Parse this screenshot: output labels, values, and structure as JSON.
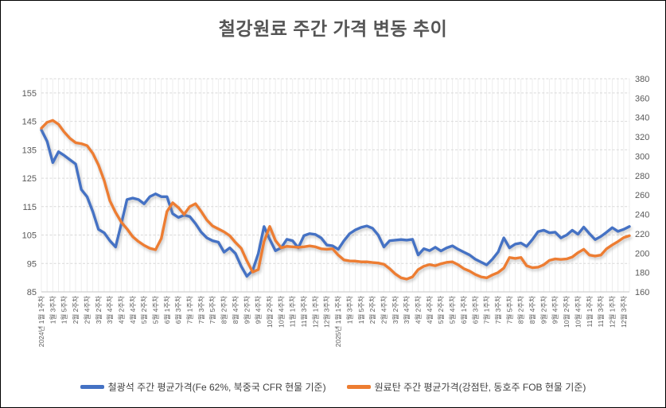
{
  "title": {
    "text": "철강원료 주간 가격 변동 추이",
    "color": "#555555"
  },
  "legend": {
    "items": [
      {
        "label": "철광석 주간 평균가격(Fe 62%, 북중국 CFR 현물 기준)",
        "color": "#4472C4"
      },
      {
        "label": "원료탄 주간 평균가격(강점탄, 동호주 FOB 현물 기준)",
        "color": "#ED7D31"
      }
    ]
  },
  "chart_data": {
    "type": "line",
    "title": "철강원료 주간 가격 변동 추이",
    "grid": {
      "h_color": "#D9D9D9",
      "v_color": "#EDEDED",
      "axis_color": "#C6C6C6",
      "label_color": "#595959"
    },
    "left_axis": {
      "min": 85,
      "max": 160,
      "ticks": [
        85,
        95,
        105,
        115,
        125,
        135,
        145,
        155
      ]
    },
    "right_axis": {
      "min": 160,
      "max": 380,
      "ticks": [
        160,
        180,
        200,
        220,
        240,
        260,
        280,
        300,
        320,
        340,
        360,
        380
      ]
    },
    "x_axis": {
      "label_step": 2,
      "tick_labels": [
        "2024년 1월 1주차",
        "1월 3주차",
        "1월 5주차",
        "2월 2주차",
        "2월 4주차",
        "3월 2주차",
        "3월 4주차",
        "4월 2주차",
        "4월 4주차",
        "5월 2주차",
        "5월 4주차",
        "6월 1주차",
        "6월 3주차",
        "7월 1주차",
        "7월 3주차",
        "7월 5주차",
        "8월 2주차",
        "8월 4주차",
        "9월 2주차",
        "9월 4주차",
        "10월 2주차",
        "10월 4주차",
        "11월 1주차",
        "11월 3주차",
        "12월 1주차",
        "12월 3주차",
        "2025년 1월 1주차",
        "1월 3주차",
        "1월 5주차",
        "2월 2주차",
        "2월 4주차",
        "3월 2주차",
        "3월 4주차",
        "4월 2주차",
        "4월 4주차",
        "5월 2주차",
        "5월 4주차",
        "6월 1주차",
        "6월 3주차",
        "7월 1주차",
        "7월 3주차",
        "7월 5주차",
        "8월 2주차",
        "8월 4주차",
        "9월 2주차",
        "9월 4주차",
        "10월 2주차",
        "10월 4주차",
        "11월 1주차",
        "11월 3주차",
        "12월 1주차",
        "12월 3주차"
      ]
    },
    "series": [
      {
        "name": "철광석 주간 평균가격(Fe 62%, 북중국 CFR 현물 기준)",
        "axis": "left",
        "color": "#4472C4",
        "values": [
          142,
          138,
          130.5,
          134.3,
          133,
          131.5,
          130,
          121,
          118.5,
          113.3,
          107,
          105.8,
          103,
          100.8,
          109,
          117.5,
          118,
          117.5,
          116,
          118.5,
          119.5,
          118.5,
          118.5,
          112.5,
          111.2,
          112,
          111.5,
          109,
          106,
          104,
          103,
          102.5,
          99,
          100.5,
          98.5,
          94,
          90.5,
          92.5,
          98.5,
          108,
          103.5,
          99.5,
          100.5,
          103.5,
          103,
          100.5,
          104.8,
          105.5,
          105.2,
          104,
          101.5,
          101.2,
          100,
          103,
          105.5,
          106.8,
          107.7,
          108.2,
          107.4,
          105,
          100.8,
          103,
          103.2,
          103.4,
          103.2,
          103.5,
          98,
          100.2,
          99.5,
          100.7,
          99.4,
          100.5,
          101.2,
          100,
          99,
          98,
          96.5,
          95.5,
          94.5,
          96.5,
          99,
          104,
          100.5,
          101.8,
          102.2,
          101,
          103.4,
          106.2,
          106.7,
          105.8,
          106,
          104,
          105,
          106.7,
          105.3,
          107.8,
          105.5,
          103.4,
          104.5,
          106,
          107.6,
          106.3,
          107,
          108
        ]
      },
      {
        "name": "원료탄 주간 평균가격(강점탄, 동호주 FOB 현물 기준)",
        "axis": "right",
        "color": "#ED7D31",
        "values": [
          329,
          335,
          337,
          333,
          325,
          318.5,
          314,
          313,
          311,
          303,
          291,
          275,
          254,
          242,
          232,
          225,
          217,
          212,
          208,
          205,
          203.5,
          215,
          243,
          252,
          247,
          240,
          248,
          251,
          243,
          234,
          228,
          225,
          222,
          218,
          211,
          205,
          192,
          180.5,
          183,
          212,
          227.5,
          213,
          205.5,
          207,
          206.5,
          206,
          206.5,
          207.5,
          206.5,
          204.5,
          204,
          204.5,
          198,
          193,
          192,
          191.8,
          191,
          191,
          190.3,
          189.8,
          188.5,
          184,
          178.5,
          174.5,
          173.2,
          175.5,
          183,
          186.5,
          188.2,
          187,
          189,
          190.5,
          191,
          188,
          184,
          181.5,
          178,
          175.5,
          174.5,
          177.5,
          180,
          184.5,
          195.5,
          194.5,
          195.5,
          187,
          185,
          185.5,
          188,
          192.5,
          194,
          193.5,
          194,
          196,
          200.5,
          204,
          198,
          197,
          198,
          204.5,
          208.5,
          212,
          216,
          218
        ]
      }
    ]
  }
}
